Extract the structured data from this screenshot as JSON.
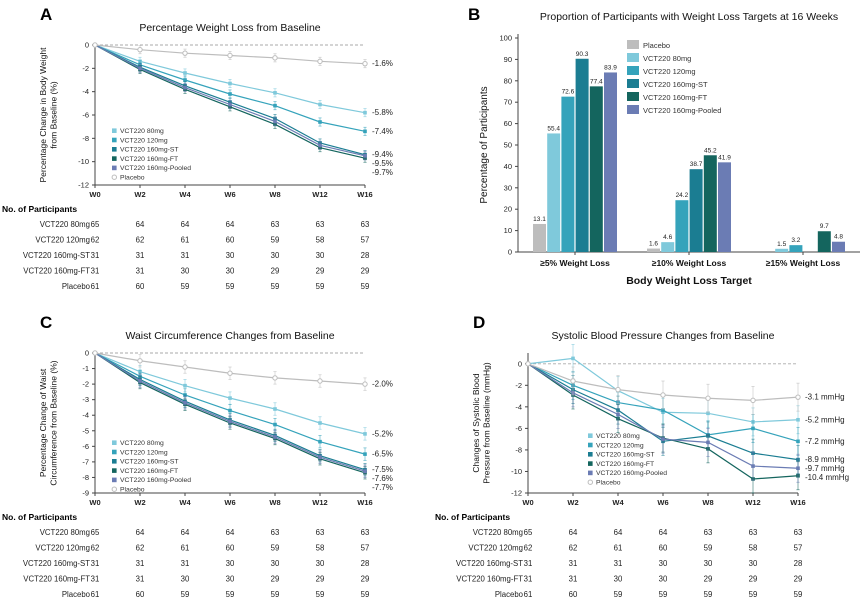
{
  "colors": {
    "Placebo": "#bdbdbd",
    "VCT220 80mg": "#7fc9db",
    "VCT220 120mg": "#35a3bb",
    "VCT220 160mg-ST": "#1b7d92",
    "VCT220 160mg-FT": "#14655e",
    "VCT220 160mg-Pooled": "#6b7cb4"
  },
  "participants_table": {
    "title": "No. of Participants",
    "columns": [
      "W0",
      "W2",
      "W4",
      "W6",
      "W8",
      "W12",
      "W16"
    ],
    "rows": [
      {
        "label": "VCT220 80mg",
        "values": [
          65,
          64,
          64,
          64,
          63,
          63,
          63
        ]
      },
      {
        "label": "VCT220 120mg",
        "values": [
          62,
          62,
          61,
          60,
          59,
          58,
          57
        ]
      },
      {
        "label": "VCT220 160mg-ST",
        "values": [
          31,
          31,
          31,
          30,
          30,
          30,
          28
        ]
      },
      {
        "label": "VCT220 160mg-FT",
        "values": [
          31,
          31,
          30,
          30,
          29,
          29,
          29
        ]
      },
      {
        "label": "Placebo",
        "values": [
          61,
          60,
          59,
          59,
          59,
          59,
          59
        ]
      }
    ]
  },
  "chart_data": [
    {
      "panel": "A",
      "type": "line",
      "title": "Percentage Weight Loss from Baseline",
      "ylabel_lines": [
        "Percentage Change in Body Weight",
        "from Baseline (%)"
      ],
      "x": [
        "W0",
        "W2",
        "W4",
        "W6",
        "W8",
        "W12",
        "W16"
      ],
      "ylim": [
        -12,
        0
      ],
      "yticks": [
        0,
        -2,
        -4,
        -6,
        -8,
        -10,
        -12
      ],
      "err": 0.35,
      "legend_pos": [
        112,
        133
      ],
      "show_table": true,
      "series": [
        {
          "name": "VCT220 80mg",
          "values": [
            0,
            -1.4,
            -2.4,
            -3.3,
            -4.1,
            -5.1,
            -5.8
          ],
          "end_label": "-5.8%"
        },
        {
          "name": "VCT220 120mg",
          "values": [
            0,
            -1.7,
            -3.0,
            -4.2,
            -5.2,
            -6.6,
            -7.4
          ],
          "end_label": "-7.4%"
        },
        {
          "name": "VCT220 160mg-ST",
          "values": [
            0,
            -1.9,
            -3.5,
            -4.9,
            -6.3,
            -8.4,
            -9.4
          ],
          "end_label": "-9.4%"
        },
        {
          "name": "VCT220 160mg-FT",
          "values": [
            0,
            -2.1,
            -3.8,
            -5.3,
            -6.8,
            -8.8,
            -9.7
          ],
          "end_label": "-9.7%"
        },
        {
          "name": "VCT220 160mg-Pooled",
          "values": [
            0,
            -2.0,
            -3.65,
            -5.1,
            -6.55,
            -8.6,
            -9.5
          ],
          "end_label": "-9.5%"
        },
        {
          "name": "Placebo",
          "values": [
            0,
            -0.4,
            -0.7,
            -0.9,
            -1.1,
            -1.4,
            -1.6
          ],
          "end_label": "-1.6%",
          "open_marker": true
        }
      ]
    },
    {
      "panel": "B",
      "type": "bar",
      "title": "Proportion of Participants with Weight Loss Targets at 16 Weeks",
      "ylabel": "Percentage of Participants",
      "xlabel": "Body Weight Loss Target",
      "ylim": [
        0,
        100
      ],
      "yticks": [
        0,
        10,
        20,
        30,
        40,
        50,
        60,
        70,
        80,
        90,
        100
      ],
      "categories": [
        "≥5% Weight Loss",
        "≥10% Weight Loss",
        "≥15% Weight Loss"
      ],
      "series": [
        {
          "name": "Placebo",
          "values": [
            13.1,
            1.6,
            0
          ]
        },
        {
          "name": "VCT220 80mg",
          "values": [
            55.4,
            4.6,
            1.5
          ]
        },
        {
          "name": "VCT220 120mg",
          "values": [
            72.6,
            24.2,
            3.2
          ]
        },
        {
          "name": "VCT220 160mg-ST",
          "values": [
            90.3,
            38.7,
            0
          ]
        },
        {
          "name": "VCT220 160mg-FT",
          "values": [
            77.4,
            45.2,
            9.7
          ]
        },
        {
          "name": "VCT220 160mg-Pooled",
          "values": [
            83.9,
            41.9,
            4.8
          ]
        }
      ]
    },
    {
      "panel": "C",
      "type": "line",
      "title": "Waist Circumference Changes from Baseline",
      "ylabel_lines": [
        "Percentage Change of Waist",
        "Circumference from Baseline (%)"
      ],
      "x": [
        "W0",
        "W2",
        "W4",
        "W6",
        "W8",
        "W12",
        "W16"
      ],
      "ylim": [
        -9,
        0
      ],
      "yticks": [
        0,
        -1,
        -2,
        -3,
        -4,
        -5,
        -6,
        -7,
        -8,
        -9
      ],
      "err": 0.4,
      "legend_pos": [
        112,
        137
      ],
      "show_table": true,
      "series": [
        {
          "name": "VCT220 80mg",
          "values": [
            0,
            -1.2,
            -2.1,
            -2.9,
            -3.6,
            -4.5,
            -5.2
          ],
          "end_label": "-5.2%"
        },
        {
          "name": "VCT220 120mg",
          "values": [
            0,
            -1.5,
            -2.7,
            -3.7,
            -4.6,
            -5.7,
            -6.5
          ],
          "end_label": "-6.5%"
        },
        {
          "name": "VCT220 160mg-ST",
          "values": [
            0,
            -1.7,
            -3.1,
            -4.3,
            -5.3,
            -6.6,
            -7.5
          ],
          "end_label": "-7.5%"
        },
        {
          "name": "VCT220 160mg-FT",
          "values": [
            0,
            -1.9,
            -3.3,
            -4.5,
            -5.5,
            -6.8,
            -7.7
          ],
          "end_label": "-7.7%"
        },
        {
          "name": "VCT220 160mg-Pooled",
          "values": [
            0,
            -1.8,
            -3.2,
            -4.4,
            -5.4,
            -6.7,
            -7.6
          ],
          "end_label": "-7.6%"
        },
        {
          "name": "Placebo",
          "values": [
            0,
            -0.5,
            -0.9,
            -1.3,
            -1.6,
            -1.8,
            -2.0
          ],
          "end_label": "-2.0%",
          "open_marker": true
        }
      ]
    },
    {
      "panel": "D",
      "type": "line",
      "title": "Systolic Blood Pressure Changes from Baseline",
      "ylabel_lines": [
        "Changes of Systolic Blood",
        "Pressure from Baseline (mmHg)"
      ],
      "x": [
        "W0",
        "W2",
        "W4",
        "W6",
        "W8",
        "W12",
        "W16"
      ],
      "ylim": [
        -12,
        1
      ],
      "yticks": [
        0,
        -2,
        -4,
        -6,
        -8,
        -10,
        -12
      ],
      "err": 1.3,
      "legend_pos": [
        155,
        130
      ],
      "show_table": true,
      "series": [
        {
          "name": "VCT220 80mg",
          "values": [
            0,
            0.5,
            -2.5,
            -4.5,
            -4.6,
            -5.4,
            -5.2
          ],
          "end_label": "-5.2 mmHg"
        },
        {
          "name": "VCT220 120mg",
          "values": [
            0,
            -2.0,
            -3.6,
            -4.3,
            -6.6,
            -6.0,
            -7.2
          ],
          "end_label": "-7.2 mmHg"
        },
        {
          "name": "VCT220 160mg-ST",
          "values": [
            0,
            -2.4,
            -4.3,
            -7.2,
            -6.7,
            -8.3,
            -8.9
          ],
          "end_label": "-8.9 mmHg"
        },
        {
          "name": "VCT220 160mg-FT",
          "values": [
            0,
            -2.9,
            -5.1,
            -6.9,
            -7.9,
            -10.7,
            -10.4
          ],
          "end_label": "-10.4 mmHg"
        },
        {
          "name": "VCT220 160mg-Pooled",
          "values": [
            0,
            -2.7,
            -4.7,
            -7.0,
            -7.3,
            -9.5,
            -9.7
          ],
          "end_label": "-9.7 mmHg"
        },
        {
          "name": "Placebo",
          "values": [
            0,
            -1.6,
            -2.4,
            -2.9,
            -3.2,
            -3.4,
            -3.1
          ],
          "end_label": "-3.1 mmHg",
          "open_marker": true
        }
      ]
    }
  ]
}
